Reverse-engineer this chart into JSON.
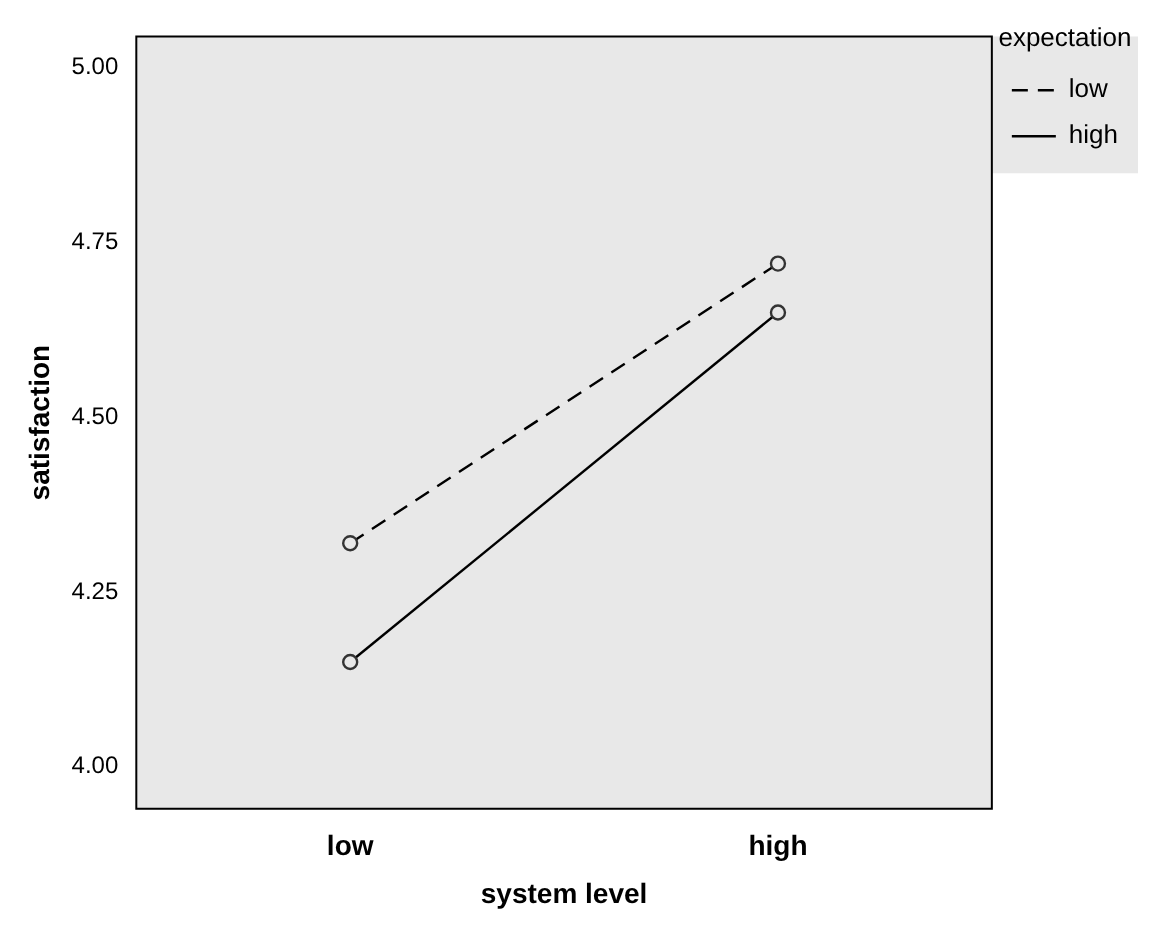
{
  "chart_data": {
    "type": "line",
    "xlabel": "system level",
    "ylabel": "satisfaction",
    "legend_title": "expectation",
    "legend": "top right",
    "marker": "circle",
    "grid": false,
    "categories": [
      "low",
      "high"
    ],
    "ylim": [
      3.94,
      5.045
    ],
    "yticks": [
      {
        "value": 4,
        "label": "4.00"
      },
      {
        "value": 4.25,
        "label": "4.25"
      },
      {
        "value": 4.5,
        "label": "4.50"
      },
      {
        "value": 4.75,
        "label": "4.75"
      },
      {
        "value": 5,
        "label": "5.00"
      }
    ],
    "series": [
      {
        "name": "low",
        "color": "#000000",
        "line_style": "dashed",
        "values": [
          4.32,
          4.72
        ]
      },
      {
        "name": "high",
        "color": "#000000",
        "line_style": "solid",
        "values": [
          4.15,
          4.65
        ]
      }
    ]
  }
}
